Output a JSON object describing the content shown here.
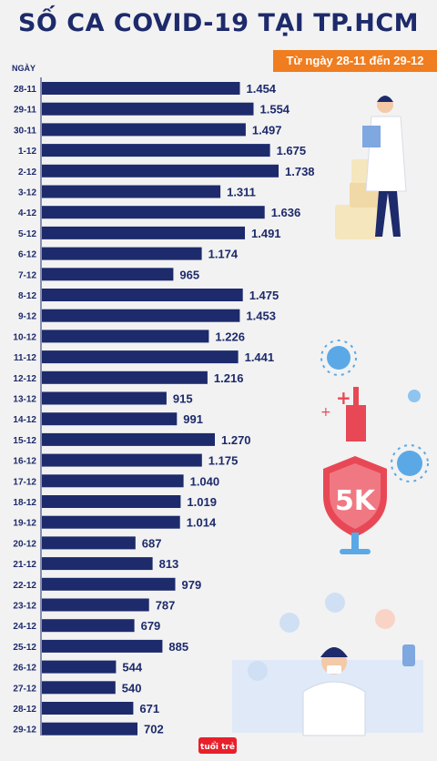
{
  "header": {
    "title": "SỐ CA COVID-19 TẠI TP.HCM",
    "subtitle": "Từ ngày 28-11 đến 29-12",
    "axis_label": "NGÀY"
  },
  "logo_text": "tuổi trẻ",
  "colors": {
    "bar": "#1d2a6b",
    "accent": "#f07d1f",
    "background": "#f2f2f2"
  },
  "chart_data": {
    "type": "bar",
    "orientation": "horizontal",
    "title": "SỐ CA COVID-19 TẠI TP.HCM",
    "subtitle": "Từ ngày 28-11 đến 29-12",
    "ylabel": "NGÀY",
    "xlim": [
      0,
      1900
    ],
    "categories": [
      "28-11",
      "29-11",
      "30-11",
      "1-12",
      "2-12",
      "3-12",
      "4-12",
      "5-12",
      "6-12",
      "7-12",
      "8-12",
      "9-12",
      "10-12",
      "11-12",
      "12-12",
      "13-12",
      "14-12",
      "15-12",
      "16-12",
      "17-12",
      "18-12",
      "19-12",
      "20-12",
      "21-12",
      "22-12",
      "23-12",
      "24-12",
      "25-12",
      "26-12",
      "27-12",
      "28-12",
      "29-12"
    ],
    "values": [
      1454,
      1554,
      1497,
      1675,
      1738,
      1311,
      1636,
      1491,
      1174,
      965,
      1475,
      1453,
      1226,
      1441,
      1216,
      915,
      991,
      1270,
      1175,
      1040,
      1019,
      1014,
      687,
      813,
      979,
      787,
      679,
      885,
      544,
      540,
      671,
      702
    ],
    "value_labels": [
      "1.454",
      "1.554",
      "1.497",
      "1.675",
      "1.738",
      "1.311",
      "1.636",
      "1.491",
      "1.174",
      "965",
      "1.475",
      "1.453",
      "1.226",
      "1.441",
      "1.216",
      "915",
      "991",
      "1.270",
      "1.175",
      "1.040",
      "1.019",
      "1.014",
      "687",
      "813",
      "979",
      "787",
      "679",
      "885",
      "544",
      "540",
      "671",
      "702"
    ]
  }
}
